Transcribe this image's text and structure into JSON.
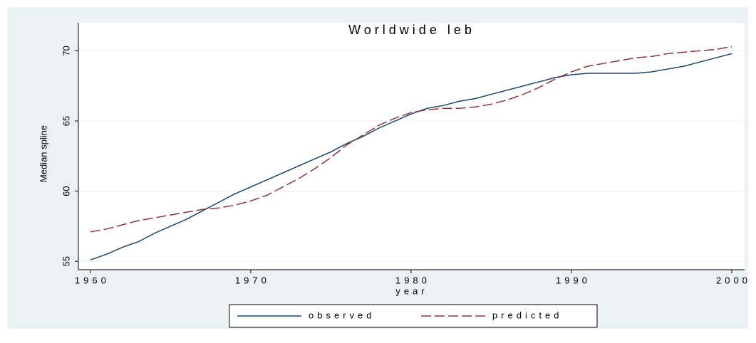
{
  "chart_data": {
    "type": "line",
    "title": "Worldwide leb",
    "x_label": "year",
    "y_label": "Median spline",
    "x": [
      1960,
      1961,
      1962,
      1963,
      1964,
      1965,
      1966,
      1967,
      1968,
      1969,
      1970,
      1971,
      1972,
      1973,
      1974,
      1975,
      1976,
      1977,
      1978,
      1979,
      1980,
      1981,
      1982,
      1983,
      1984,
      1985,
      1986,
      1987,
      1988,
      1989,
      1990,
      1991,
      1992,
      1993,
      1994,
      1995,
      1996,
      1997,
      1998,
      1999,
      2000
    ],
    "series": [
      {
        "name": "observed",
        "color": "#1a476f",
        "line_style": "solid",
        "values": [
          55.1,
          55.5,
          56.0,
          56.4,
          57.0,
          57.5,
          58.0,
          58.6,
          59.2,
          59.8,
          60.3,
          60.8,
          61.3,
          61.8,
          62.3,
          62.8,
          63.4,
          63.9,
          64.5,
          65.0,
          65.5,
          65.9,
          66.1,
          66.4,
          66.6,
          66.9,
          67.2,
          67.5,
          67.8,
          68.1,
          68.3,
          68.4,
          68.4,
          68.4,
          68.4,
          68.5,
          68.7,
          68.9,
          69.2,
          69.5,
          69.8
        ]
      },
      {
        "name": "predicted",
        "color": "#90353b",
        "line_style": "dashed",
        "values": [
          57.1,
          57.3,
          57.6,
          57.9,
          58.1,
          58.3,
          58.5,
          58.7,
          58.8,
          59.0,
          59.3,
          59.7,
          60.3,
          60.9,
          61.6,
          62.4,
          63.3,
          64.0,
          64.7,
          65.2,
          65.6,
          65.8,
          65.9,
          65.9,
          66.0,
          66.2,
          66.5,
          66.9,
          67.4,
          68.0,
          68.5,
          68.9,
          69.1,
          69.3,
          69.5,
          69.6,
          69.8,
          69.9,
          70.0,
          70.1,
          70.3
        ]
      }
    ],
    "xlim": [
      1959.25,
      2000.8
    ],
    "xticks": [
      1960,
      1970,
      1980,
      1990,
      2000
    ],
    "ylim": [
      54.4,
      72
    ],
    "yticks": [
      55,
      60,
      65,
      70
    ],
    "grid": true,
    "legend": "bottom"
  }
}
